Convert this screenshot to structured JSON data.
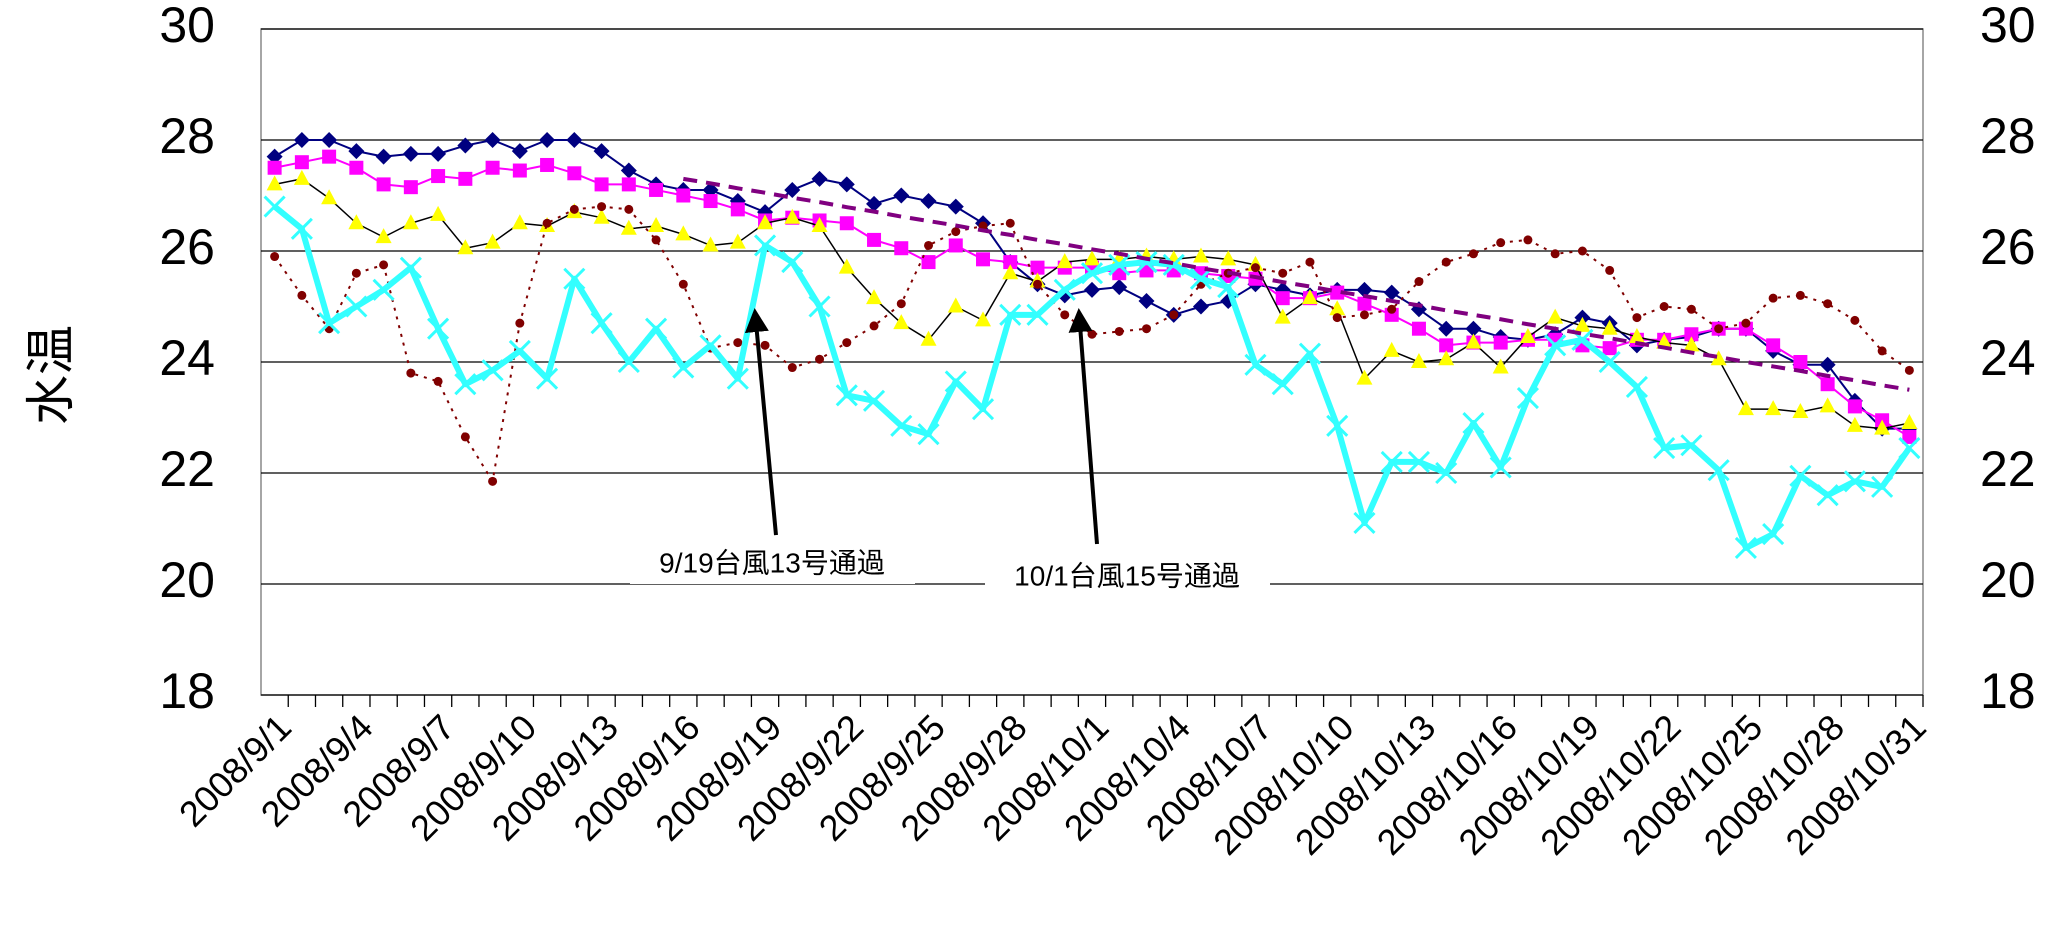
{
  "chart_data": {
    "type": "line",
    "y_label": "水温",
    "ylim": [
      18,
      30
    ],
    "yticks": [
      18,
      20,
      22,
      24,
      26,
      28,
      30
    ],
    "y2lim": [
      18,
      30
    ],
    "y2ticks": [
      18,
      20,
      22,
      24,
      26,
      28,
      30
    ],
    "grid": true,
    "categories": [
      "2008/9/1",
      null,
      null,
      "2008/9/4",
      null,
      null,
      "2008/9/7",
      null,
      null,
      "2008/9/10",
      null,
      null,
      "2008/9/13",
      null,
      null,
      "2008/9/16",
      null,
      null,
      "2008/9/19",
      null,
      null,
      "2008/9/22",
      null,
      null,
      "2008/9/25",
      null,
      null,
      "2008/9/28",
      null,
      null,
      "2008/10/1",
      null,
      null,
      "2008/10/4",
      null,
      null,
      "2008/10/7",
      null,
      null,
      "2008/10/10",
      null,
      null,
      "2008/10/13",
      null,
      null,
      "2008/10/16",
      null,
      null,
      "2008/10/19",
      null,
      null,
      "2008/10/22",
      null,
      null,
      "2008/10/25",
      null,
      null,
      "2008/10/28",
      null,
      null,
      "2008/10/31"
    ],
    "series": [
      {
        "color": "#000080",
        "line_color": "#000080",
        "line_style": "solid",
        "line_width": 2,
        "marker": "diamond",
        "values": [
          27.7,
          28.0,
          28.0,
          27.8,
          27.7,
          27.75,
          27.75,
          27.9,
          28.0,
          27.8,
          28.0,
          28.0,
          27.8,
          27.45,
          27.2,
          27.1,
          27.1,
          26.9,
          26.7,
          27.1,
          27.3,
          27.2,
          26.85,
          27.0,
          26.9,
          26.8,
          26.5,
          25.8,
          25.4,
          25.2,
          25.3,
          25.35,
          25.1,
          24.85,
          25.0,
          25.1,
          25.4,
          25.3,
          25.2,
          25.3,
          25.3,
          25.25,
          24.95,
          24.6,
          24.6,
          24.45,
          24.4,
          24.5,
          24.8,
          24.7,
          24.3,
          24.4,
          24.45,
          24.6,
          24.6,
          24.2,
          23.95,
          23.95,
          23.3,
          22.8,
          22.8
        ]
      },
      {
        "color": "#ff00ff",
        "line_color": "#ff00ff",
        "line_style": "solid",
        "line_width": 2,
        "marker": "square",
        "values": [
          27.5,
          27.6,
          27.7,
          27.5,
          27.2,
          27.15,
          27.35,
          27.3,
          27.5,
          27.45,
          27.55,
          27.4,
          27.2,
          27.2,
          27.1,
          27.0,
          26.9,
          26.75,
          26.55,
          26.6,
          26.55,
          26.5,
          26.2,
          26.05,
          25.8,
          26.1,
          25.85,
          25.8,
          25.7,
          25.7,
          25.7,
          25.6,
          25.65,
          25.65,
          25.6,
          25.55,
          25.5,
          25.15,
          25.15,
          25.25,
          25.05,
          24.85,
          24.6,
          24.3,
          24.35,
          24.35,
          24.4,
          24.4,
          24.3,
          24.25,
          24.4,
          24.4,
          24.5,
          24.6,
          24.6,
          24.3,
          24.0,
          23.6,
          23.2,
          22.95,
          22.65
        ]
      },
      {
        "color": "#ffff00",
        "line_color": "#000000",
        "line_style": "solid",
        "line_width": 1.5,
        "marker": "triangle",
        "values": [
          27.2,
          27.3,
          26.95,
          26.5,
          26.25,
          26.5,
          26.65,
          26.05,
          26.15,
          26.5,
          26.45,
          26.7,
          26.6,
          26.4,
          26.45,
          26.3,
          26.1,
          26.15,
          26.5,
          26.6,
          26.45,
          25.7,
          25.15,
          24.7,
          24.4,
          25.0,
          24.75,
          25.6,
          25.45,
          25.8,
          25.85,
          25.85,
          25.9,
          25.85,
          25.9,
          25.85,
          25.75,
          24.8,
          25.15,
          24.95,
          23.7,
          24.2,
          24.0,
          24.05,
          24.35,
          23.9,
          24.45,
          24.8,
          24.65,
          24.6,
          24.45,
          24.35,
          24.3,
          24.05,
          23.15,
          23.15,
          23.1,
          23.2,
          22.85,
          22.8,
          22.9
        ]
      },
      {
        "color": "#800000",
        "line_color": "#800000",
        "line_style": "dotted",
        "line_width": 2,
        "marker": "circle",
        "values": [
          25.9,
          25.2,
          24.6,
          25.6,
          25.75,
          23.8,
          23.65,
          22.65,
          21.85,
          24.7,
          26.5,
          26.75,
          26.8,
          26.75,
          26.2,
          25.4,
          24.25,
          24.35,
          24.3,
          23.9,
          24.05,
          24.35,
          24.65,
          25.05,
          26.1,
          26.35,
          26.45,
          26.5,
          25.4,
          24.85,
          24.5,
          24.55,
          24.6,
          24.85,
          25.4,
          25.6,
          25.7,
          25.6,
          25.8,
          24.8,
          24.85,
          24.95,
          25.45,
          25.8,
          25.95,
          26.15,
          26.2,
          25.95,
          26.0,
          25.65,
          24.8,
          25.0,
          24.95,
          24.6,
          24.7,
          25.15,
          25.2,
          25.05,
          24.75,
          24.2,
          23.85
        ]
      },
      {
        "color": "#33ffff",
        "line_color": "#33ffff",
        "line_style": "solid",
        "line_width": 6,
        "marker": "x",
        "values": [
          26.8,
          26.4,
          24.7,
          25.0,
          25.3,
          25.7,
          24.6,
          23.6,
          23.85,
          24.2,
          23.7,
          25.5,
          24.7,
          24.0,
          24.6,
          23.9,
          24.3,
          23.7,
          26.1,
          25.8,
          25.0,
          23.4,
          23.3,
          22.85,
          22.7,
          23.65,
          23.15,
          24.85,
          24.85,
          25.3,
          25.6,
          25.75,
          25.8,
          25.75,
          25.5,
          25.35,
          23.95,
          23.6,
          24.15,
          22.85,
          21.1,
          22.2,
          22.2,
          22.0,
          22.9,
          22.1,
          23.35,
          24.3,
          24.4,
          24.0,
          23.55,
          22.45,
          22.5,
          22.05,
          20.65,
          20.9,
          21.95,
          21.6,
          21.85,
          21.75,
          22.45
        ]
      },
      {
        "color": "#800080",
        "line_color": "#800080",
        "line_style": "dashed",
        "line_width": 4,
        "marker": "none",
        "values": [
          null,
          null,
          null,
          null,
          null,
          null,
          null,
          null,
          null,
          null,
          null,
          null,
          null,
          null,
          null,
          27.3,
          27.22,
          27.13,
          27.05,
          26.96,
          26.88,
          26.79,
          26.71,
          26.62,
          26.54,
          26.46,
          26.37,
          26.29,
          26.2,
          26.12,
          26.03,
          25.95,
          25.86,
          25.78,
          25.69,
          25.61,
          25.53,
          25.44,
          25.36,
          25.27,
          25.19,
          25.1,
          25.02,
          24.93,
          24.85,
          24.77,
          24.68,
          24.6,
          24.51,
          24.43,
          24.34,
          24.26,
          24.17,
          24.09,
          24.0,
          23.92,
          23.84,
          23.75,
          23.67,
          23.58,
          23.5
        ]
      }
    ],
    "annotations": [
      {
        "text": "9/19台風13号通過"
      },
      {
        "text": "10/1台風15号通過"
      }
    ]
  }
}
